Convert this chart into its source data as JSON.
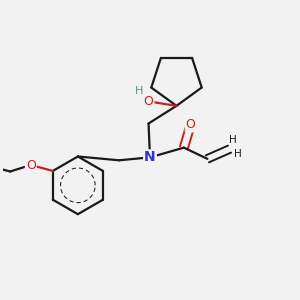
{
  "background_color": "#f2f2f2",
  "bond_color": "#1a1a1a",
  "N_color": "#3333cc",
  "O_color": "#cc2020",
  "H_color": "#5a9090",
  "figsize": [
    3.0,
    3.0
  ],
  "dpi": 100,
  "xlim": [
    0.0,
    1.0
  ],
  "ylim": [
    0.0,
    1.0
  ]
}
